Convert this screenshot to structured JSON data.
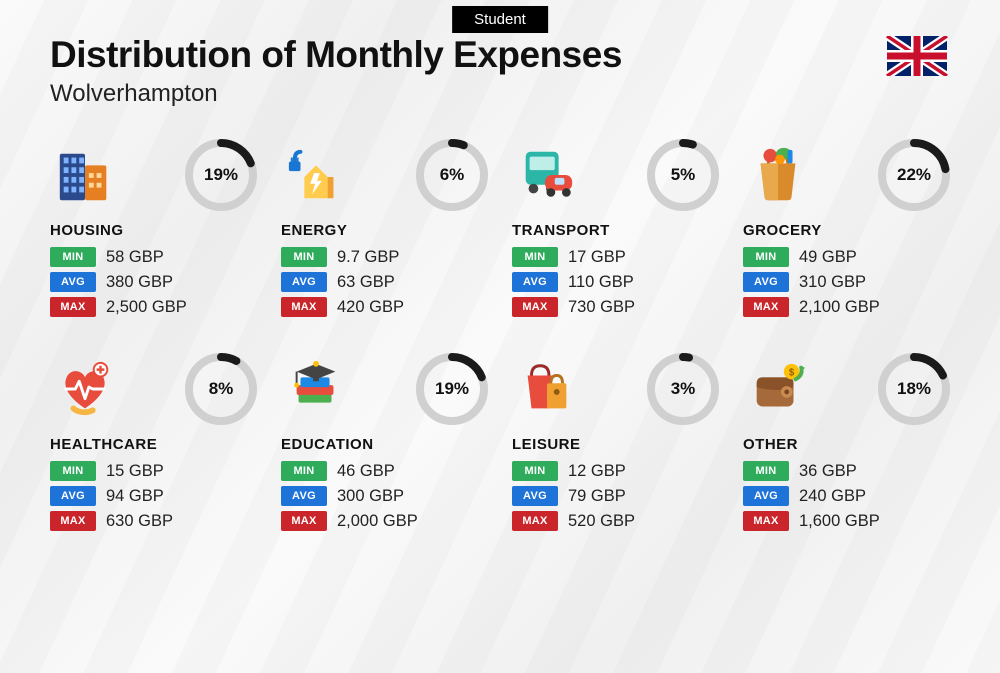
{
  "badge": "Student",
  "title": "Distribution of Monthly Expenses",
  "subtitle": "Wolverhampton",
  "currency": "GBP",
  "colors": {
    "min": "#2eab5b",
    "avg": "#1e73d8",
    "max": "#c9252b",
    "donut_track": "#d0d0d0",
    "donut_fill": "#1a1a1a",
    "badge_bg": "#000000",
    "text": "#111111"
  },
  "labels": {
    "min": "MIN",
    "avg": "AVG",
    "max": "MAX"
  },
  "donut": {
    "size": 72,
    "stroke": 8
  },
  "categories": [
    {
      "key": "housing",
      "name": "HOUSING",
      "pct": 19,
      "min": "58",
      "avg": "380",
      "max": "2,500",
      "icon": "buildings"
    },
    {
      "key": "energy",
      "name": "ENERGY",
      "pct": 6,
      "min": "9.7",
      "avg": "63",
      "max": "420",
      "icon": "energy"
    },
    {
      "key": "transport",
      "name": "TRANSPORT",
      "pct": 5,
      "min": "17",
      "avg": "110",
      "max": "730",
      "icon": "transport"
    },
    {
      "key": "grocery",
      "name": "GROCERY",
      "pct": 22,
      "min": "49",
      "avg": "310",
      "max": "2,100",
      "icon": "grocery"
    },
    {
      "key": "healthcare",
      "name": "HEALTHCARE",
      "pct": 8,
      "min": "15",
      "avg": "94",
      "max": "630",
      "icon": "healthcare"
    },
    {
      "key": "education",
      "name": "EDUCATION",
      "pct": 19,
      "min": "46",
      "avg": "300",
      "max": "2,000",
      "icon": "education"
    },
    {
      "key": "leisure",
      "name": "LEISURE",
      "pct": 3,
      "min": "12",
      "avg": "79",
      "max": "520",
      "icon": "leisure"
    },
    {
      "key": "other",
      "name": "OTHER",
      "pct": 18,
      "min": "36",
      "avg": "240",
      "max": "1,600",
      "icon": "other"
    }
  ]
}
